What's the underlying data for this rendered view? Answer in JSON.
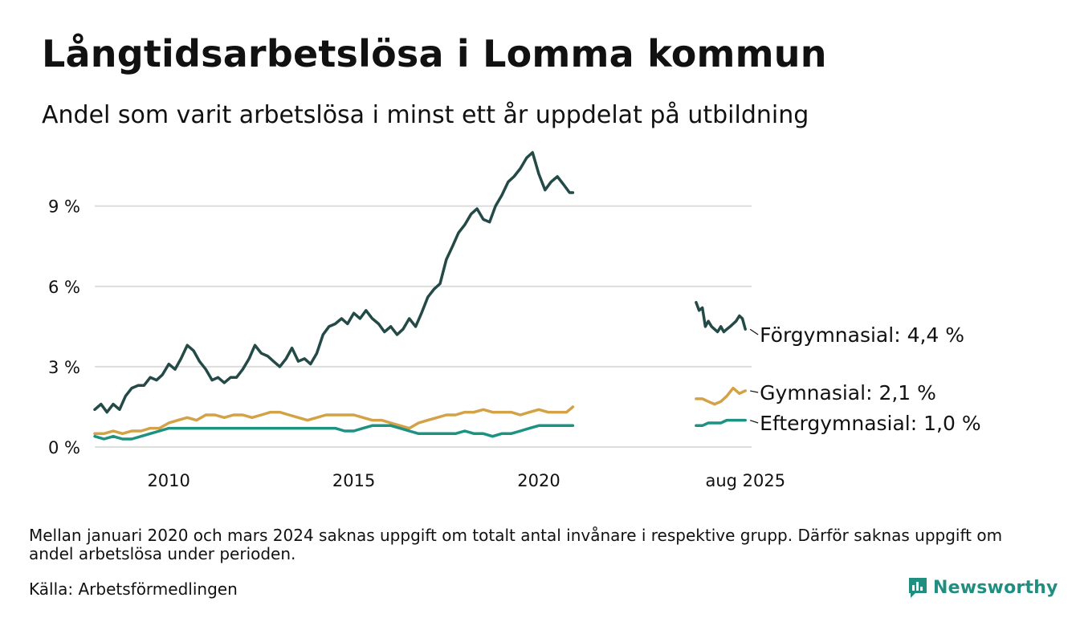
{
  "title": "Långtidsarbetslösa i Lomma kommun",
  "subtitle": "Andel som varit arbetslösa i minst ett år uppdelat på utbildning",
  "note": "Mellan januari 2020 och mars 2024 saknas uppgift om totalt antal invånare i respektive grupp. Därför saknas uppgift om andel arbetslösa under perioden.",
  "source": "Källa: Arbetsförmedlingen",
  "brand": "Newsworthy",
  "chart_data": {
    "type": "line",
    "title": "Långtidsarbetslösa i Lomma kommun",
    "subtitle": "Andel som varit arbetslösa i minst ett år uppdelat på utbildning",
    "xlabel": "",
    "ylabel": "",
    "ylim": [
      0,
      11
    ],
    "yticks": [
      0,
      3,
      6,
      9
    ],
    "ytick_labels": [
      "0 %",
      "3 %",
      "6 %",
      "9 %"
    ],
    "xlim": [
      2008.0,
      2025.75
    ],
    "xticks": [
      2010,
      2015,
      2020,
      2025.583
    ],
    "xtick_labels": [
      "2010",
      "2015",
      "2020",
      "aug 2025"
    ],
    "grid": "horizontal",
    "legend": "inline end labels",
    "series": [
      {
        "name": "Förgymnasial",
        "end_label": "Förgymnasial: 4,4 %",
        "color": "#234a47",
        "segments": [
          {
            "x": [
              2008.0,
              2008.17,
              2008.33,
              2008.5,
              2008.67,
              2008.83,
              2009.0,
              2009.17,
              2009.33,
              2009.5,
              2009.67,
              2009.83,
              2010.0,
              2010.17,
              2010.33,
              2010.5,
              2010.67,
              2010.83,
              2011.0,
              2011.17,
              2011.33,
              2011.5,
              2011.67,
              2011.83,
              2012.0,
              2012.17,
              2012.33,
              2012.5,
              2012.67,
              2012.83,
              2013.0,
              2013.17,
              2013.33,
              2013.5,
              2013.67,
              2013.83,
              2014.0,
              2014.17,
              2014.33,
              2014.5,
              2014.67,
              2014.83,
              2015.0,
              2015.17,
              2015.33,
              2015.5,
              2015.67,
              2015.83,
              2016.0,
              2016.17,
              2016.33,
              2016.5,
              2016.67,
              2016.83,
              2017.0,
              2017.17,
              2017.33,
              2017.5,
              2017.67,
              2017.83,
              2018.0,
              2018.17,
              2018.33,
              2018.5,
              2018.67,
              2018.83,
              2019.0,
              2019.17,
              2019.33,
              2019.5,
              2019.67,
              2019.83,
              2020.0,
              2020.17,
              2020.33,
              2020.5,
              2020.67,
              2020.83,
              2020.92
            ],
            "y": [
              1.4,
              1.6,
              1.3,
              1.6,
              1.4,
              1.9,
              2.2,
              2.3,
              2.3,
              2.6,
              2.5,
              2.7,
              3.1,
              2.9,
              3.3,
              3.8,
              3.6,
              3.2,
              2.9,
              2.5,
              2.6,
              2.4,
              2.6,
              2.6,
              2.9,
              3.3,
              3.8,
              3.5,
              3.4,
              3.2,
              3.0,
              3.3,
              3.7,
              3.2,
              3.3,
              3.1,
              3.5,
              4.2,
              4.5,
              4.6,
              4.8,
              4.6,
              5.0,
              4.8,
              5.1,
              4.8,
              4.6,
              4.3,
              4.5,
              4.2,
              4.4,
              4.8,
              4.5,
              5.0,
              5.6,
              5.9,
              6.1,
              7.0,
              7.5,
              8.0,
              8.3,
              8.7,
              8.9,
              8.5,
              8.4,
              9.0,
              9.4,
              9.9,
              10.1,
              10.4,
              10.8,
              11.0,
              10.2,
              9.6,
              9.9,
              10.1,
              9.8,
              9.5,
              9.5
            ]
          },
          {
            "x": [
              2024.25,
              2024.33,
              2024.42,
              2024.5,
              2024.58,
              2024.67,
              2024.75,
              2024.83,
              2024.92,
              2025.0,
              2025.08,
              2025.17,
              2025.25,
              2025.33,
              2025.42,
              2025.5,
              2025.58
            ],
            "y": [
              5.4,
              5.1,
              5.2,
              4.5,
              4.7,
              4.5,
              4.4,
              4.3,
              4.5,
              4.3,
              4.4,
              4.5,
              4.6,
              4.7,
              4.9,
              4.8,
              4.4
            ]
          }
        ]
      },
      {
        "name": "Gymnasial",
        "end_label": "Gymnasial: 2,1 %",
        "color": "#d4a246",
        "segments": [
          {
            "x": [
              2008.0,
              2008.25,
              2008.5,
              2008.75,
              2009.0,
              2009.25,
              2009.5,
              2009.75,
              2010.0,
              2010.25,
              2010.5,
              2010.75,
              2011.0,
              2011.25,
              2011.5,
              2011.75,
              2012.0,
              2012.25,
              2012.5,
              2012.75,
              2013.0,
              2013.25,
              2013.5,
              2013.75,
              2014.0,
              2014.25,
              2014.5,
              2014.75,
              2015.0,
              2015.25,
              2015.5,
              2015.75,
              2016.0,
              2016.25,
              2016.5,
              2016.75,
              2017.0,
              2017.25,
              2017.5,
              2017.75,
              2018.0,
              2018.25,
              2018.5,
              2018.75,
              2019.0,
              2019.25,
              2019.5,
              2019.75,
              2020.0,
              2020.25,
              2020.5,
              2020.75,
              2020.92
            ],
            "y": [
              0.5,
              0.5,
              0.6,
              0.5,
              0.6,
              0.6,
              0.7,
              0.7,
              0.9,
              1.0,
              1.1,
              1.0,
              1.2,
              1.2,
              1.1,
              1.2,
              1.2,
              1.1,
              1.2,
              1.3,
              1.3,
              1.2,
              1.1,
              1.0,
              1.1,
              1.2,
              1.2,
              1.2,
              1.2,
              1.1,
              1.0,
              1.0,
              0.9,
              0.8,
              0.7,
              0.9,
              1.0,
              1.1,
              1.2,
              1.2,
              1.3,
              1.3,
              1.4,
              1.3,
              1.3,
              1.3,
              1.2,
              1.3,
              1.4,
              1.3,
              1.3,
              1.3,
              1.5
            ]
          },
          {
            "x": [
              2024.25,
              2024.42,
              2024.58,
              2024.75,
              2024.92,
              2025.08,
              2025.25,
              2025.42,
              2025.58
            ],
            "y": [
              1.8,
              1.8,
              1.7,
              1.6,
              1.7,
              1.9,
              2.2,
              2.0,
              2.1
            ]
          }
        ]
      },
      {
        "name": "Eftergymnasial",
        "end_label": "Eftergymnasial: 1,0 %",
        "color": "#1d9282",
        "segments": [
          {
            "x": [
              2008.0,
              2008.25,
              2008.5,
              2008.75,
              2009.0,
              2009.25,
              2009.5,
              2009.75,
              2010.0,
              2010.25,
              2010.5,
              2010.75,
              2011.0,
              2011.25,
              2011.5,
              2011.75,
              2012.0,
              2012.25,
              2012.5,
              2012.75,
              2013.0,
              2013.25,
              2013.5,
              2013.75,
              2014.0,
              2014.25,
              2014.5,
              2014.75,
              2015.0,
              2015.25,
              2015.5,
              2015.75,
              2016.0,
              2016.25,
              2016.5,
              2016.75,
              2017.0,
              2017.25,
              2017.5,
              2017.75,
              2018.0,
              2018.25,
              2018.5,
              2018.75,
              2019.0,
              2019.25,
              2019.5,
              2019.75,
              2020.0,
              2020.25,
              2020.5,
              2020.75,
              2020.92
            ],
            "y": [
              0.4,
              0.3,
              0.4,
              0.3,
              0.3,
              0.4,
              0.5,
              0.6,
              0.7,
              0.7,
              0.7,
              0.7,
              0.7,
              0.7,
              0.7,
              0.7,
              0.7,
              0.7,
              0.7,
              0.7,
              0.7,
              0.7,
              0.7,
              0.7,
              0.7,
              0.7,
              0.7,
              0.6,
              0.6,
              0.7,
              0.8,
              0.8,
              0.8,
              0.7,
              0.6,
              0.5,
              0.5,
              0.5,
              0.5,
              0.5,
              0.6,
              0.5,
              0.5,
              0.4,
              0.5,
              0.5,
              0.6,
              0.7,
              0.8,
              0.8,
              0.8,
              0.8,
              0.8
            ]
          },
          {
            "x": [
              2024.25,
              2024.42,
              2024.58,
              2024.75,
              2024.92,
              2025.08,
              2025.25,
              2025.42,
              2025.58
            ],
            "y": [
              0.8,
              0.8,
              0.9,
              0.9,
              0.9,
              1.0,
              1.0,
              1.0,
              1.0
            ]
          }
        ]
      }
    ]
  }
}
